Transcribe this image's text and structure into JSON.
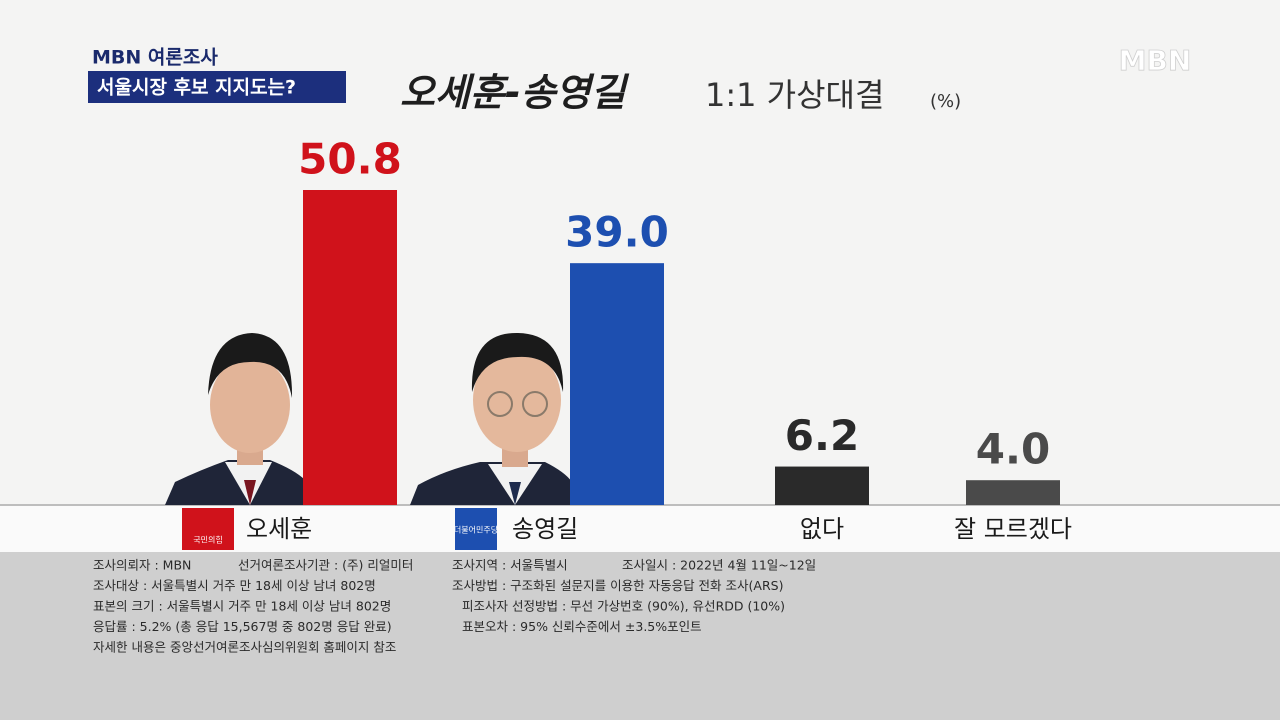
{
  "chart_data": {
    "type": "bar",
    "badge": "MBN 여론조사",
    "headline": "서울시장 후보 지지도는?",
    "logo": "MBN",
    "title": "오세훈-송영길",
    "subtitle": "1:1 가상대결",
    "unit": "(%)",
    "categories": [
      "오세훈",
      "송영길",
      "없다",
      "잘 모르겠다"
    ],
    "values": [
      50.8,
      39.0,
      6.2,
      4.0
    ],
    "value_labels": [
      "50.8",
      "39.0",
      "6.2",
      "4.0"
    ],
    "colors": [
      "#d0121b",
      "#1d4fb0",
      "#2a2a2a",
      "#4a4a4a"
    ],
    "party_logos": [
      "국민의힘",
      "더불어민주당"
    ],
    "footnote": [
      [
        "조사의뢰자 : MBN",
        "선거여론조사기관 : (주) 리얼미터",
        "조사지역 : 서울특별시",
        "조사일시 : 2022년 4월 11일~12일"
      ],
      [
        "조사대상 : 서울특별시 거주 만 18세 이상 남녀 802명",
        "조사방법 : 구조화된 설문지를 이용한 자동응답 전화 조사(ARS)"
      ],
      [
        "표본의 크기 : 서울특별시 거주 만 18세 이상 남녀 802명",
        "피조사자 선정방법 : 무선 가상번호 (90%), 유선RDD (10%)"
      ],
      [
        "응답률 : 5.2% (총 응답 15,567명 중 802명 응답 완료)",
        "표본오차 : 95% 신뢰수준에서 ±3.5%포인트"
      ],
      [
        "자세한 내용은 중앙선거여론조사심의위원회 홈페이지 참조"
      ]
    ]
  }
}
